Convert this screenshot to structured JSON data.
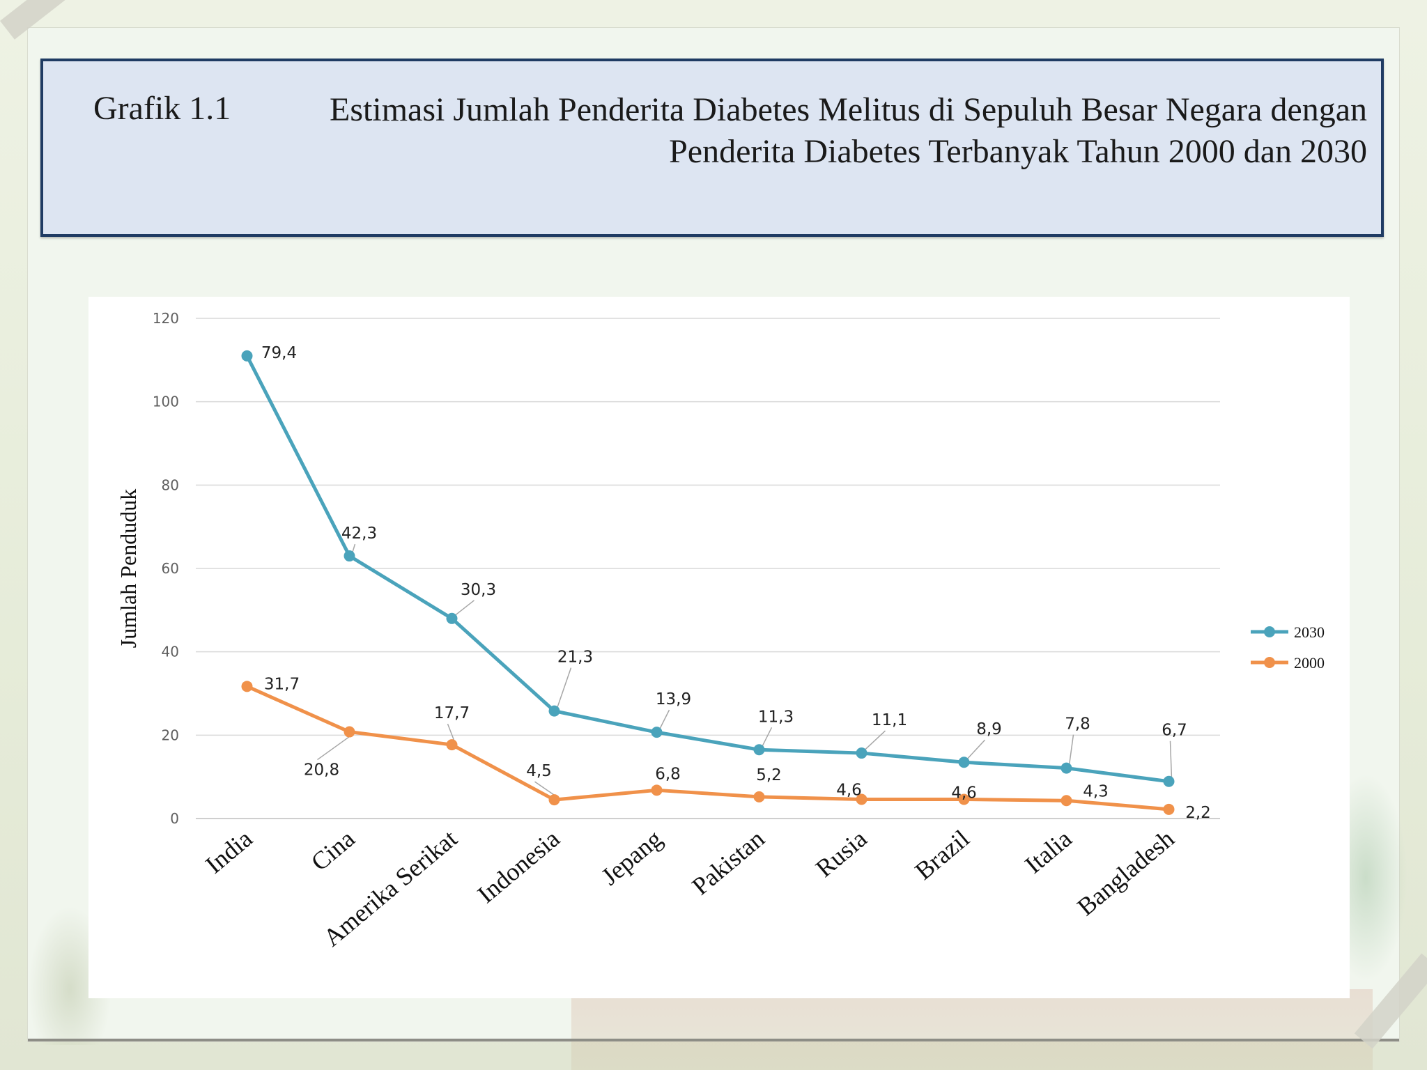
{
  "header": {
    "figure_label": "Grafik 1.1",
    "figure_title": "Estimasi Jumlah Penderita Diabetes Melitus di Sepuluh Besar Negara dengan Penderita Diabetes Terbanyak Tahun 2000 dan 2030"
  },
  "colors": {
    "series_2030": "#4aa3bb",
    "series_2000": "#f0914a",
    "title_border": "#1f3b63",
    "title_fill": "#dde5f2"
  },
  "chart_data": {
    "type": "line",
    "title": "",
    "xlabel": "",
    "ylabel": "Jumlah Penduduk",
    "ylim": [
      0,
      120
    ],
    "yticks": [
      0,
      20,
      40,
      60,
      80,
      100,
      120
    ],
    "grid": true,
    "legend_position": "right",
    "categories": [
      "India",
      "Cina",
      "Amerika Serikat",
      "Indonesia",
      "Jepang",
      "Pakistan",
      "Rusia",
      "Brazil",
      "Italia",
      "Bangladesh"
    ],
    "series": [
      {
        "name": "2030",
        "color": "#4aa3bb",
        "values": [
          111,
          63,
          48,
          25.8,
          20.7,
          16.5,
          15.7,
          13.5,
          12.1,
          8.9
        ],
        "data_labels": [
          "79,4",
          "42,3",
          "30,3",
          "21,3",
          "13,9",
          "11,3",
          "11,1",
          "8,9",
          "7,8",
          "6,7"
        ]
      },
      {
        "name": "2000",
        "color": "#f0914a",
        "values": [
          31.7,
          20.8,
          17.7,
          4.5,
          6.8,
          5.2,
          4.6,
          4.6,
          4.3,
          2.2
        ],
        "data_labels": [
          "31,7",
          "20,8",
          "17,7",
          "4,5",
          "6,8",
          "5,2",
          "4,6",
          "4,6",
          "4,3",
          "2,2"
        ]
      }
    ]
  }
}
